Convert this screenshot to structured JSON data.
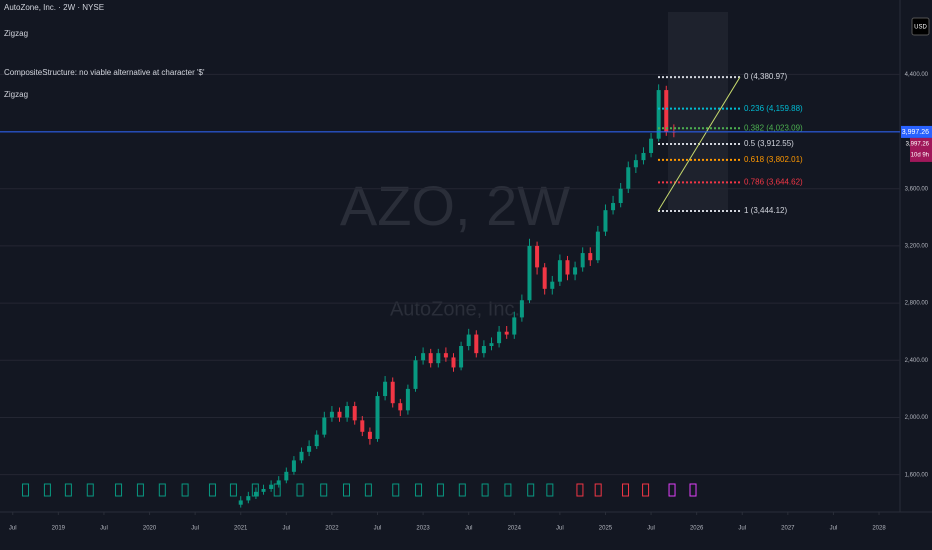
{
  "chart_data": {
    "type": "candlestick",
    "title": "AutoZone, Inc. · 2W · NYSE",
    "annotations": [
      "Zigzag",
      "CompositeStructure: no viable alternative at character '$'",
      "Zigzag"
    ],
    "watermark": [
      "AZO, 2W",
      "AutoZone, Inc."
    ],
    "currency": "USD",
    "up_color": "#089981",
    "down_color": "#f23645",
    "x": [
      2021.0,
      2021.0833,
      2021.1667,
      2021.25,
      2021.3333,
      2021.4167,
      2021.5,
      2021.5833,
      2021.6667,
      2021.75,
      2021.8333,
      2021.9167,
      2022.0,
      2022.0833,
      2022.1667,
      2022.25,
      2022.3333,
      2022.4167,
      2022.5,
      2022.5833,
      2022.6667,
      2022.75,
      2022.8333,
      2022.9167,
      2023.0,
      2023.0833,
      2023.1667,
      2023.25,
      2023.3333,
      2023.4167,
      2023.5,
      2023.5833,
      2023.6667,
      2023.75,
      2023.8333,
      2023.9167,
      2024.0,
      2024.0833,
      2024.1667,
      2024.25,
      2024.3333,
      2024.4167,
      2024.5,
      2024.5833,
      2024.6667,
      2024.75,
      2024.8333,
      2024.9167,
      2025.0,
      2025.0833,
      2025.1667,
      2025.25,
      2025.3333,
      2025.4167,
      2025.5,
      2025.5833,
      2025.6667,
      2025.75
    ],
    "open": [
      1390,
      1420,
      1450,
      1480,
      1500,
      1530,
      1560,
      1620,
      1700,
      1760,
      1800,
      1880,
      2000,
      2040,
      2000,
      2080,
      1980,
      1900,
      1850,
      2150,
      2250,
      2100,
      2050,
      2200,
      2400,
      2450,
      2380,
      2450,
      2420,
      2350,
      2500,
      2580,
      2450,
      2500,
      2520,
      2600,
      2580,
      2700,
      2820,
      3200,
      3050,
      2900,
      2950,
      3100,
      3000,
      3050,
      3150,
      3100,
      3300,
      3450,
      3500,
      3600,
      3750,
      3800,
      3850,
      3950,
      4290,
      4000
    ],
    "high": [
      1450,
      1480,
      1510,
      1530,
      1560,
      1590,
      1650,
      1730,
      1790,
      1840,
      1910,
      2040,
      2080,
      2070,
      2110,
      2110,
      2010,
      1930,
      2180,
      2290,
      2280,
      2130,
      2230,
      2430,
      2490,
      2480,
      2480,
      2490,
      2450,
      2530,
      2620,
      2610,
      2540,
      2560,
      2640,
      2640,
      2740,
      2860,
      3250,
      3230,
      3080,
      2990,
      3140,
      3130,
      3090,
      3190,
      3190,
      3340,
      3490,
      3550,
      3640,
      3790,
      3840,
      3890,
      3990,
      4330,
      4320,
      4050
    ],
    "low": [
      1370,
      1400,
      1430,
      1460,
      1480,
      1510,
      1540,
      1600,
      1680,
      1730,
      1780,
      1860,
      1970,
      1970,
      1970,
      1950,
      1870,
      1810,
      1830,
      2120,
      2070,
      2010,
      2020,
      2180,
      2370,
      2350,
      2350,
      2390,
      2320,
      2330,
      2470,
      2420,
      2420,
      2470,
      2490,
      2550,
      2550,
      2670,
      2800,
      3000,
      2860,
      2860,
      2920,
      2960,
      2960,
      3020,
      3060,
      3080,
      3270,
      3420,
      3470,
      3570,
      3710,
      3770,
      3820,
      3930,
      3970,
      3960
    ],
    "close": [
      1420,
      1450,
      1480,
      1500,
      1530,
      1560,
      1620,
      1700,
      1760,
      1800,
      1880,
      2000,
      2040,
      2000,
      2080,
      1980,
      1900,
      1850,
      2150,
      2250,
      2100,
      2050,
      2200,
      2400,
      2450,
      2380,
      2450,
      2420,
      2350,
      2500,
      2580,
      2450,
      2500,
      2520,
      2600,
      2580,
      2700,
      2820,
      3200,
      3050,
      2900,
      2950,
      3100,
      3000,
      3050,
      3150,
      3100,
      3300,
      3450,
      3500,
      3600,
      3750,
      3800,
      3850,
      3950,
      4290,
      4000,
      3997.26
    ],
    "last_price": 3997.26,
    "last_price_label": "3,997.26",
    "countdown": "10d 9h",
    "xlim": [
      2018.36,
      2028.23
    ],
    "ylim": [
      1353,
      4920
    ],
    "xticks": [
      {
        "value": 2018.5,
        "label": "Jul"
      },
      {
        "value": 2019,
        "label": "2019"
      },
      {
        "value": 2019.5,
        "label": "Jul"
      },
      {
        "value": 2020,
        "label": "2020"
      },
      {
        "value": 2020.5,
        "label": "Jul"
      },
      {
        "value": 2021,
        "label": "2021"
      },
      {
        "value": 2021.5,
        "label": "Jul"
      },
      {
        "value": 2022,
        "label": "2022"
      },
      {
        "value": 2022.5,
        "label": "Jul"
      },
      {
        "value": 2023,
        "label": "2023"
      },
      {
        "value": 2023.5,
        "label": "Jul"
      },
      {
        "value": 2024,
        "label": "2024"
      },
      {
        "value": 2024.5,
        "label": "Jul"
      },
      {
        "value": 2025,
        "label": "2025"
      },
      {
        "value": 2025.5,
        "label": "Jul"
      },
      {
        "value": 2026,
        "label": "2026"
      },
      {
        "value": 2026.5,
        "label": "Jul"
      },
      {
        "value": 2027,
        "label": "2027"
      },
      {
        "value": 2027.5,
        "label": "Jul"
      },
      {
        "value": 2028,
        "label": "2028"
      }
    ],
    "yticks": [
      {
        "value": 1600,
        "label": "1,600.00"
      },
      {
        "value": 2000,
        "label": "2,000.00"
      },
      {
        "value": 2400,
        "label": "2,400.00"
      },
      {
        "value": 2800,
        "label": "2,800.00"
      },
      {
        "value": 3200,
        "label": "3,200.00"
      },
      {
        "value": 3600,
        "label": "3,600.00"
      },
      {
        "value": 4000,
        "label": "4,000.00"
      },
      {
        "value": 4400,
        "label": "4,400.00"
      }
    ],
    "grid": true,
    "fib": [
      {
        "price": 4380.97,
        "label": "0 (4,380.97)",
        "color": "#d1d4dc"
      },
      {
        "price": 4159.88,
        "label": "0.236 (4,159.88)",
        "color": "#00bcd4"
      },
      {
        "price": 4023.09,
        "label": "0.382 (4,023.09)",
        "color": "#4caf50"
      },
      {
        "price": 3912.55,
        "label": "0.5 (3,912.55)",
        "color": "#d1d4dc"
      },
      {
        "price": 3802.01,
        "label": "0.618 (3,802.01)",
        "color": "#ff9800"
      },
      {
        "price": 3644.62,
        "label": "0.786 (3,644.62)",
        "color": "#f23645"
      },
      {
        "price": 3444.12,
        "label": "1 (3,444.12)",
        "color": "#d1d4dc"
      }
    ],
    "signals": [
      {
        "color": "#089981",
        "x": [
          2018.64,
          2018.88,
          2019.11,
          2019.35,
          2019.66,
          2019.9,
          2020.14,
          2020.39,
          2020.69,
          2020.92,
          2021.16,
          2021.4,
          2021.65,
          2021.91,
          2022.16,
          2022.4,
          2022.7,
          2022.95,
          2023.19,
          2023.43,
          2023.68,
          2023.93,
          2024.18,
          2024.39
        ]
      },
      {
        "color": "#f23645",
        "x": [
          2024.72,
          2024.92,
          2025.22,
          2025.44
        ]
      },
      {
        "color": "#e040fb",
        "x": [
          2025.73,
          2025.96
        ]
      }
    ]
  }
}
